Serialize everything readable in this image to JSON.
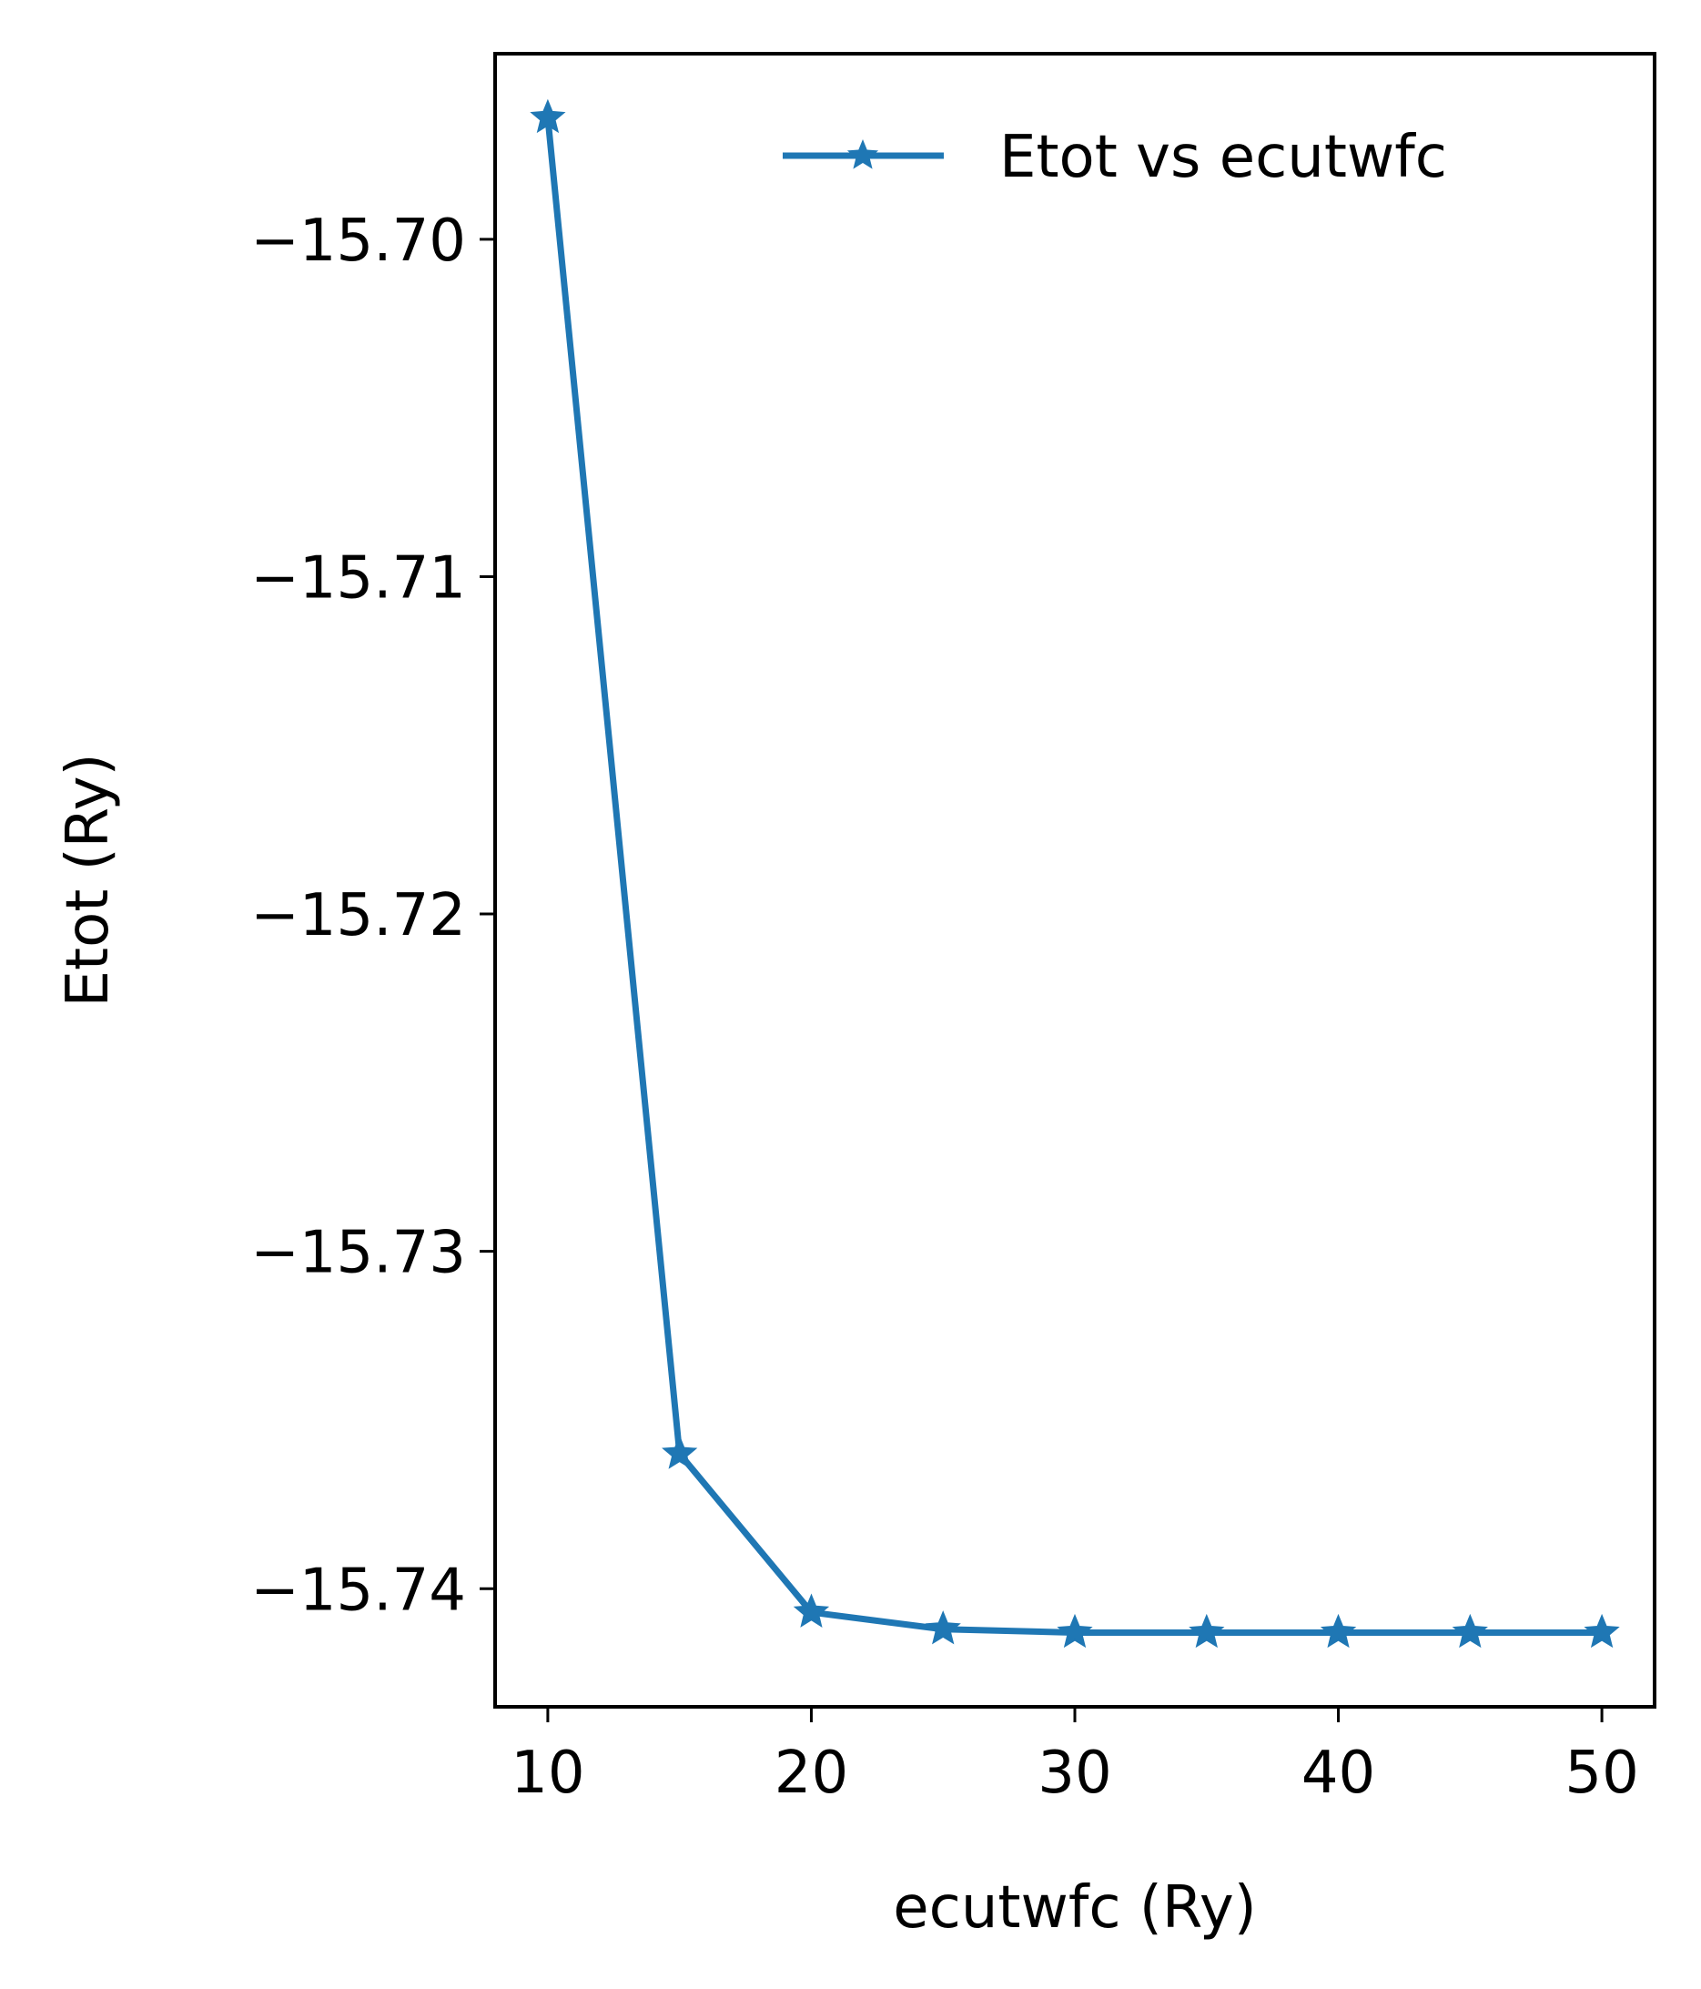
{
  "chart_data": {
    "type": "line",
    "title": "",
    "xlabel": "ecutwfc (Ry)",
    "ylabel": "Etot (Ry)",
    "x": [
      10,
      15,
      20,
      25,
      30,
      35,
      40,
      45,
      50
    ],
    "series": [
      {
        "name": "Etot vs ecutwfc",
        "color": "#1f77b4",
        "marker": "star",
        "values": [
          -15.6964,
          -15.736,
          -15.7407,
          -15.7412,
          -15.7413,
          -15.7413,
          -15.7413,
          -15.7413,
          -15.7413
        ]
      }
    ],
    "xlim": [
      8,
      52
    ],
    "ylim": [
      -15.7435,
      -15.6945
    ],
    "xticks": [
      10,
      20,
      30,
      40,
      50
    ],
    "xtick_labels": [
      "10",
      "20",
      "30",
      "40",
      "50"
    ],
    "yticks": [
      -15.7,
      -15.71,
      -15.72,
      -15.73,
      -15.74
    ],
    "ytick_labels": [
      "−15.70",
      "−15.71",
      "−15.72",
      "−15.73",
      "−15.74"
    ],
    "legend_position": "top-right",
    "grid": false
  }
}
